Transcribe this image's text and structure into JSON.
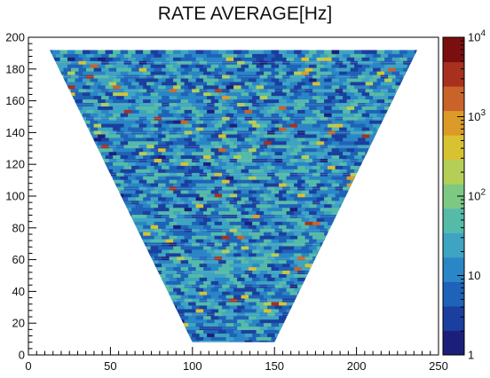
{
  "chart_data": {
    "type": "heatmap",
    "title": "RATE AVERAGE[Hz]",
    "xlabel": "",
    "ylabel": "",
    "xlim": [
      0,
      250
    ],
    "ylim": [
      0,
      200
    ],
    "x_ticks": [
      "0",
      "50",
      "100",
      "150",
      "200",
      "250"
    ],
    "y_ticks": [
      "0",
      "20",
      "40",
      "60",
      "80",
      "100",
      "120",
      "140",
      "160",
      "180",
      "200"
    ],
    "colorbar": {
      "scale": "log",
      "range": [
        1,
        10000
      ],
      "tick_labels": [
        {
          "base": "1",
          "exp": ""
        },
        {
          "base": "10",
          "exp": ""
        },
        {
          "base": "10",
          "exp": "2"
        },
        {
          "base": "10",
          "exp": "3"
        },
        {
          "base": "10",
          "exp": "4"
        }
      ]
    },
    "region": {
      "shape": "inverted-triangle",
      "top_y": 192,
      "top_x_range": [
        13,
        237
      ],
      "bottom_y": 8,
      "bottom_x_range": [
        100,
        150
      ]
    },
    "typical_value_range_hz": [
      3,
      60
    ],
    "colors": {
      "palette": [
        "#1c1f7a",
        "#1a3f9e",
        "#1e63b8",
        "#2a86c6",
        "#3ea4c2",
        "#55bba8",
        "#7dc883",
        "#b3cf56",
        "#d8c232",
        "#dc9a28",
        "#c9632a",
        "#a8301f",
        "#7a0f0f"
      ]
    }
  }
}
